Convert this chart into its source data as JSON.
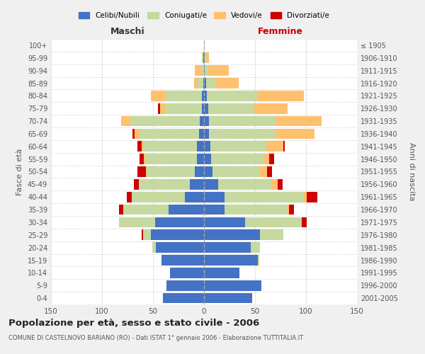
{
  "age_groups": [
    "0-4",
    "5-9",
    "10-14",
    "15-19",
    "20-24",
    "25-29",
    "30-34",
    "35-39",
    "40-44",
    "45-49",
    "50-54",
    "55-59",
    "60-64",
    "65-69",
    "70-74",
    "75-79",
    "80-84",
    "85-89",
    "90-94",
    "95-99",
    "100+"
  ],
  "birth_years": [
    "2001-2005",
    "1996-2000",
    "1991-1995",
    "1986-1990",
    "1981-1985",
    "1976-1980",
    "1971-1975",
    "1966-1970",
    "1961-1965",
    "1956-1960",
    "1951-1955",
    "1946-1950",
    "1941-1945",
    "1936-1940",
    "1931-1935",
    "1926-1930",
    "1921-1925",
    "1916-1920",
    "1911-1915",
    "1906-1910",
    "≤ 1905"
  ],
  "colors": {
    "celibi": "#4472c4",
    "coniugati": "#c5d9a0",
    "vedovi": "#ffc06e",
    "divorziati": "#cc0000"
  },
  "maschi": {
    "celibi": [
      40,
      37,
      33,
      42,
      47,
      52,
      48,
      35,
      19,
      14,
      9,
      7,
      7,
      5,
      4,
      2,
      2,
      1,
      0,
      1,
      0
    ],
    "coniugati": [
      0,
      0,
      0,
      0,
      4,
      8,
      35,
      44,
      52,
      50,
      47,
      50,
      52,
      58,
      68,
      36,
      36,
      5,
      3,
      1,
      0
    ],
    "vedovi": [
      0,
      0,
      0,
      0,
      0,
      0,
      0,
      0,
      0,
      0,
      1,
      2,
      2,
      5,
      9,
      5,
      14,
      4,
      6,
      0,
      0
    ],
    "divorziati": [
      0,
      0,
      0,
      0,
      0,
      1,
      0,
      4,
      5,
      5,
      8,
      4,
      4,
      2,
      0,
      2,
      0,
      0,
      0,
      0,
      0
    ]
  },
  "femmine": {
    "celibi": [
      47,
      56,
      35,
      53,
      46,
      55,
      40,
      20,
      20,
      14,
      8,
      7,
      6,
      5,
      5,
      4,
      3,
      2,
      1,
      1,
      0
    ],
    "coniugati": [
      0,
      0,
      0,
      1,
      9,
      23,
      55,
      62,
      78,
      53,
      47,
      52,
      55,
      65,
      65,
      45,
      50,
      10,
      3,
      1,
      0
    ],
    "vedovi": [
      0,
      0,
      0,
      0,
      0,
      0,
      1,
      1,
      3,
      5,
      7,
      5,
      17,
      38,
      45,
      33,
      45,
      22,
      20,
      3,
      1
    ],
    "divorziati": [
      0,
      0,
      0,
      0,
      0,
      0,
      5,
      5,
      10,
      5,
      5,
      5,
      1,
      0,
      0,
      0,
      0,
      0,
      0,
      0,
      0
    ]
  },
  "xlim": 150,
  "title": "Popolazione per età, sesso e stato civile - 2006",
  "subtitle": "COMUNE DI CASTELNOVO BARIANO (RO) - Dati ISTAT 1° gennaio 2006 - Elaborazione TUTTITALIA.IT",
  "ylabel_left": "Fasce di età",
  "ylabel_right": "Anni di nascita",
  "xlabel_left": "Maschi",
  "xlabel_right": "Femmine",
  "bg_color": "#f0f0f0",
  "plot_bg": "#ffffff",
  "grid_color": "#cccccc"
}
